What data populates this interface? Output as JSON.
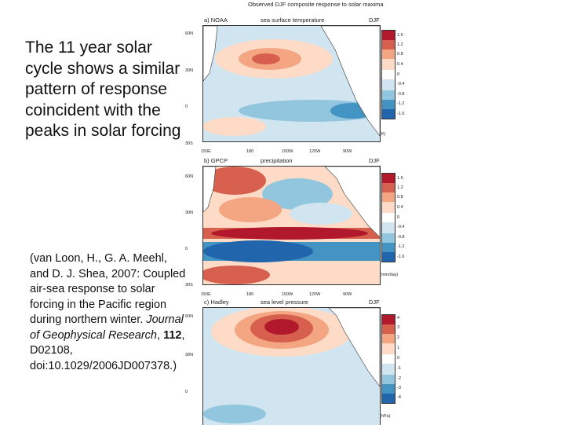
{
  "slide": {
    "main_text": "The 11 year solar cycle shows a similar pattern of response coincident with the peaks in solar forcing",
    "citation": {
      "authors": "(van Loon, H., G. A. Meehl, and D. J. Shea, 2007: Coupled air-sea response to solar forcing in the Pacific region during northern winter. ",
      "journal": "Journal of Geophysical Research",
      "sep1": ", ",
      "volume": "112",
      "rest": ", D02108, doi:10.1029/2006JD007378.)"
    }
  },
  "figure": {
    "title": "Observed DJF composite response to solar maxima",
    "panels": [
      {
        "label": "a) NOAA",
        "variable": "sea surface temperature",
        "season": "DJF",
        "unit": "(K)",
        "lats": [
          "60N",
          "30N",
          "0",
          "30S"
        ],
        "lons": [
          "150E",
          "180",
          "150W",
          "120W",
          "90W"
        ],
        "ticks": [
          "1.6",
          "1.2",
          "0.8",
          "0.4",
          "0",
          "-0.4",
          "-0.8",
          "-1.2",
          "-1.6"
        ]
      },
      {
        "label": "b) GPCP",
        "variable": "precipitation",
        "season": "DJF",
        "unit": "(mm/day)",
        "lats": [
          "60N",
          "30N",
          "0",
          "30S"
        ],
        "lons": [
          "150E",
          "180",
          "150W",
          "120W",
          "90W"
        ],
        "ticks": [
          "1.6",
          "1.2",
          "0.8",
          "0.4",
          "0",
          "-0.4",
          "-0.8",
          "-1.2",
          "-1.6"
        ]
      },
      {
        "label": "c) Hadley",
        "variable": "sea level pressure",
        "season": "DJF",
        "unit": "(hPa)",
        "lats": [
          "60N",
          "30N",
          "0"
        ],
        "lons": [],
        "ticks": [
          "4",
          "3",
          "2",
          "1",
          "0",
          "-1",
          "-2",
          "-3",
          "-4"
        ]
      }
    ],
    "colors": {
      "positive": [
        "#b2182b",
        "#d6604d",
        "#f4a582",
        "#fddbc7"
      ],
      "neutral": "#ffffff",
      "negative": [
        "#d1e5f0",
        "#92c5de",
        "#4393c3",
        "#2166ac"
      ],
      "land": "#ffffff"
    }
  }
}
